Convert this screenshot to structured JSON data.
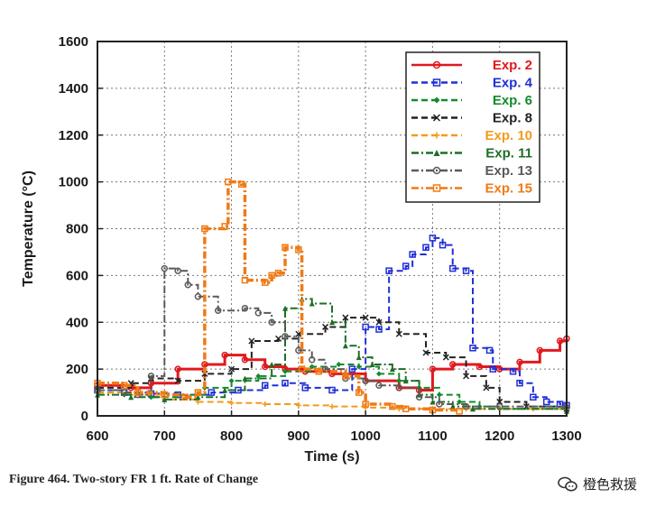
{
  "caption": "Figure 464.  Two-story FR 1 ft. Rate of Change",
  "watermark": {
    "text": "橙色救援",
    "icon": "chat-bubbles-icon"
  },
  "chart_data": {
    "type": "line",
    "title": "",
    "xlabel": "Time (s)",
    "ylabel": "Temperature (°C)",
    "xlim": [
      600,
      1300
    ],
    "ylim": [
      0,
      1600
    ],
    "x_ticks": [
      600,
      700,
      800,
      900,
      1000,
      1100,
      1200,
      1300
    ],
    "y_ticks": [
      0,
      200,
      400,
      600,
      800,
      1000,
      1200,
      1400,
      1600
    ],
    "grid": true,
    "legend_position": "top-right",
    "series": [
      {
        "name": "Exp. 2",
        "color": "#e0191f",
        "marker": "circle",
        "dash": "solid",
        "points": [
          [
            600,
            130
          ],
          [
            650,
            120
          ],
          [
            680,
            140
          ],
          [
            720,
            200
          ],
          [
            760,
            220
          ],
          [
            790,
            260
          ],
          [
            820,
            240
          ],
          [
            850,
            210
          ],
          [
            880,
            200
          ],
          [
            910,
            190
          ],
          [
            950,
            180
          ],
          [
            1000,
            150
          ],
          [
            1050,
            120
          ],
          [
            1080,
            110
          ],
          [
            1100,
            200
          ],
          [
            1130,
            220
          ],
          [
            1170,
            210
          ],
          [
            1200,
            200
          ],
          [
            1230,
            230
          ],
          [
            1260,
            280
          ],
          [
            1290,
            320
          ],
          [
            1300,
            330
          ]
        ]
      },
      {
        "name": "Exp. 4",
        "color": "#1f2fd6",
        "marker": "square",
        "dash": "dashed",
        "points": [
          [
            600,
            110
          ],
          [
            640,
            100
          ],
          [
            680,
            95
          ],
          [
            720,
            90
          ],
          [
            770,
            100
          ],
          [
            810,
            110
          ],
          [
            850,
            130
          ],
          [
            880,
            140
          ],
          [
            910,
            120
          ],
          [
            950,
            110
          ],
          [
            980,
            200
          ],
          [
            1000,
            380
          ],
          [
            1020,
            370
          ],
          [
            1035,
            620
          ],
          [
            1060,
            640
          ],
          [
            1070,
            690
          ],
          [
            1090,
            720
          ],
          [
            1100,
            760
          ],
          [
            1115,
            730
          ],
          [
            1130,
            630
          ],
          [
            1150,
            620
          ],
          [
            1160,
            290
          ],
          [
            1185,
            280
          ],
          [
            1190,
            200
          ],
          [
            1220,
            190
          ],
          [
            1230,
            140
          ],
          [
            1250,
            80
          ],
          [
            1270,
            60
          ],
          [
            1290,
            50
          ],
          [
            1300,
            45
          ]
        ]
      },
      {
        "name": "Exp. 6",
        "color": "#138a2e",
        "marker": "diamond",
        "dash": "dashed",
        "points": [
          [
            600,
            100
          ],
          [
            640,
            90
          ],
          [
            680,
            80
          ],
          [
            720,
            90
          ],
          [
            760,
            120
          ],
          [
            800,
            150
          ],
          [
            840,
            170
          ],
          [
            880,
            190
          ],
          [
            920,
            210
          ],
          [
            960,
            220
          ],
          [
            990,
            210
          ],
          [
            1020,
            180
          ],
          [
            1050,
            150
          ],
          [
            1080,
            120
          ],
          [
            1110,
            90
          ],
          [
            1140,
            60
          ],
          [
            1170,
            40
          ],
          [
            1200,
            30
          ],
          [
            1300,
            20
          ]
        ]
      },
      {
        "name": "Exp. 8",
        "color": "#222222",
        "marker": "x",
        "dash": "dashed",
        "points": [
          [
            600,
            120
          ],
          [
            650,
            140
          ],
          [
            680,
            160
          ],
          [
            720,
            150
          ],
          [
            760,
            180
          ],
          [
            800,
            200
          ],
          [
            830,
            320
          ],
          [
            870,
            330
          ],
          [
            900,
            350
          ],
          [
            940,
            380
          ],
          [
            970,
            420
          ],
          [
            1000,
            420
          ],
          [
            1020,
            400
          ],
          [
            1050,
            350
          ],
          [
            1090,
            270
          ],
          [
            1120,
            250
          ],
          [
            1150,
            170
          ],
          [
            1180,
            120
          ],
          [
            1200,
            60
          ],
          [
            1240,
            40
          ],
          [
            1300,
            30
          ]
        ]
      },
      {
        "name": "Exp. 10",
        "color": "#f39a1e",
        "marker": "plus",
        "dash": "dashed",
        "points": [
          [
            600,
            100
          ],
          [
            650,
            90
          ],
          [
            700,
            70
          ],
          [
            750,
            60
          ],
          [
            800,
            55
          ],
          [
            850,
            50
          ],
          [
            900,
            45
          ],
          [
            950,
            40
          ],
          [
            1000,
            35
          ],
          [
            1050,
            30
          ],
          [
            1100,
            30
          ],
          [
            1150,
            30
          ],
          [
            1200,
            30
          ],
          [
            1250,
            30
          ],
          [
            1300,
            30
          ]
        ]
      },
      {
        "name": "Exp. 11",
        "color": "#1d6e27",
        "marker": "triangle",
        "dash": "dashdot",
        "points": [
          [
            600,
            90
          ],
          [
            650,
            80
          ],
          [
            700,
            70
          ],
          [
            750,
            80
          ],
          [
            790,
            110
          ],
          [
            820,
            160
          ],
          [
            860,
            220
          ],
          [
            880,
            460
          ],
          [
            905,
            500
          ],
          [
            920,
            480
          ],
          [
            950,
            400
          ],
          [
            970,
            300
          ],
          [
            990,
            250
          ],
          [
            1010,
            220
          ],
          [
            1040,
            200
          ],
          [
            1060,
            150
          ],
          [
            1080,
            90
          ],
          [
            1100,
            60
          ],
          [
            1130,
            40
          ],
          [
            1160,
            30
          ],
          [
            1300,
            20
          ]
        ]
      },
      {
        "name": "Exp. 13",
        "color": "#5a5a5a",
        "marker": "circle",
        "dash": "dashdot",
        "points": [
          [
            600,
            110
          ],
          [
            640,
            100
          ],
          [
            660,
            90
          ],
          [
            680,
            170
          ],
          [
            700,
            630
          ],
          [
            720,
            620
          ],
          [
            735,
            560
          ],
          [
            750,
            510
          ],
          [
            780,
            450
          ],
          [
            820,
            460
          ],
          [
            840,
            440
          ],
          [
            860,
            400
          ],
          [
            880,
            340
          ],
          [
            900,
            280
          ],
          [
            920,
            240
          ],
          [
            940,
            200
          ],
          [
            970,
            160
          ],
          [
            1000,
            150
          ],
          [
            1020,
            130
          ],
          [
            1050,
            120
          ],
          [
            1080,
            80
          ],
          [
            1110,
            50
          ],
          [
            1150,
            40
          ],
          [
            1200,
            40
          ],
          [
            1300,
            35
          ]
        ]
      },
      {
        "name": "Exp. 15",
        "color": "#f07a14",
        "marker": "square",
        "dash": "dashdot",
        "points": [
          [
            600,
            140
          ],
          [
            640,
            130
          ],
          [
            660,
            100
          ],
          [
            700,
            90
          ],
          [
            730,
            80
          ],
          [
            750,
            100
          ],
          [
            760,
            800
          ],
          [
            790,
            810
          ],
          [
            795,
            1000
          ],
          [
            815,
            990
          ],
          [
            820,
            580
          ],
          [
            850,
            570
          ],
          [
            860,
            600
          ],
          [
            870,
            610
          ],
          [
            880,
            720
          ],
          [
            900,
            710
          ],
          [
            905,
            200
          ],
          [
            930,
            190
          ],
          [
            970,
            170
          ],
          [
            990,
            100
          ],
          [
            1000,
            50
          ],
          [
            1040,
            40
          ],
          [
            1060,
            30
          ],
          [
            1100,
            25
          ],
          [
            1140,
            20
          ]
        ]
      }
    ]
  }
}
